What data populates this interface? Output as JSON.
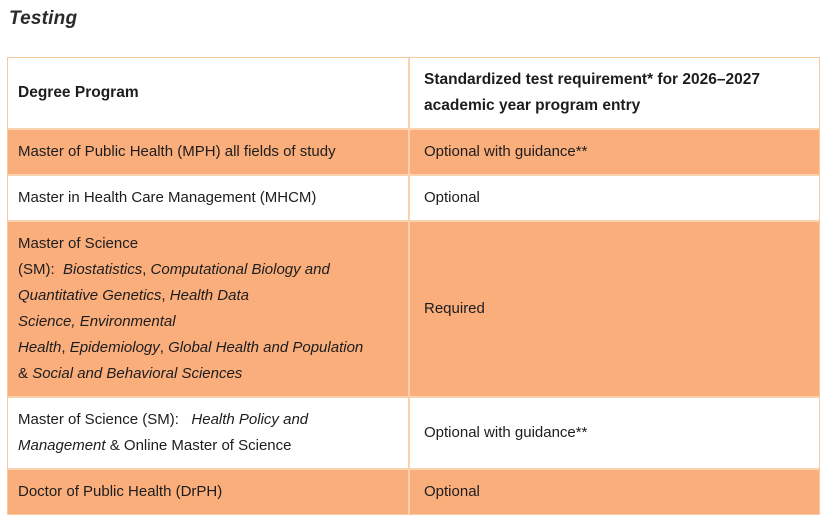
{
  "title": "Testing",
  "colors": {
    "row_highlight": "#F9AE7B",
    "table_border_light": "#FAD2AE",
    "table_border_outer": "#F7C9A1",
    "text": "#1D1D1F"
  },
  "table": {
    "headers": {
      "program": "Degree Program",
      "requirement": "Standardized test requirement* for 2026–2027 academic year program entry"
    },
    "rows": [
      {
        "shaded": true,
        "program_lines": [
          [
            {
              "t": "Master of Public Health (MPH) all fields of study",
              "i": false
            }
          ]
        ],
        "requirement": "Optional with guidance**"
      },
      {
        "shaded": false,
        "program_lines": [
          [
            {
              "t": "Master in Health Care Management (MHCM)",
              "i": false
            }
          ]
        ],
        "requirement": "Optional"
      },
      {
        "shaded": true,
        "program_lines": [
          [
            {
              "t": "Master of Science",
              "i": false
            }
          ],
          [
            {
              "t": "(SM):  ",
              "i": false
            },
            {
              "t": "Biostatistics",
              "i": true
            },
            {
              "t": ", ",
              "i": false
            },
            {
              "t": "Computational Biology and",
              "i": true
            }
          ],
          [
            {
              "t": "Quantitative Genetics",
              "i": true
            },
            {
              "t": ", ",
              "i": false
            },
            {
              "t": "Health Data",
              "i": true
            }
          ],
          [
            {
              "t": "Science, Environmental",
              "i": true
            }
          ],
          [
            {
              "t": "Health",
              "i": true
            },
            {
              "t": ", ",
              "i": false
            },
            {
              "t": "Epidemiology",
              "i": true
            },
            {
              "t": ", ",
              "i": false
            },
            {
              "t": "Global Health and Population",
              "i": true
            }
          ],
          [
            {
              "t": "& ",
              "i": false
            },
            {
              "t": "Social and Behavioral Sciences",
              "i": true
            }
          ]
        ],
        "requirement": "Required"
      },
      {
        "shaded": false,
        "program_lines": [
          [
            {
              "t": "Master of Science (SM):   ",
              "i": false
            },
            {
              "t": "Health Policy and",
              "i": true
            }
          ],
          [
            {
              "t": "Management",
              "i": true
            },
            {
              "t": " & Online Master of Science",
              "i": false
            }
          ]
        ],
        "requirement": "Optional with guidance**"
      },
      {
        "shaded": true,
        "program_lines": [
          [
            {
              "t": "Doctor of Public Health (DrPH)",
              "i": false
            }
          ]
        ],
        "requirement": "Optional"
      }
    ]
  }
}
